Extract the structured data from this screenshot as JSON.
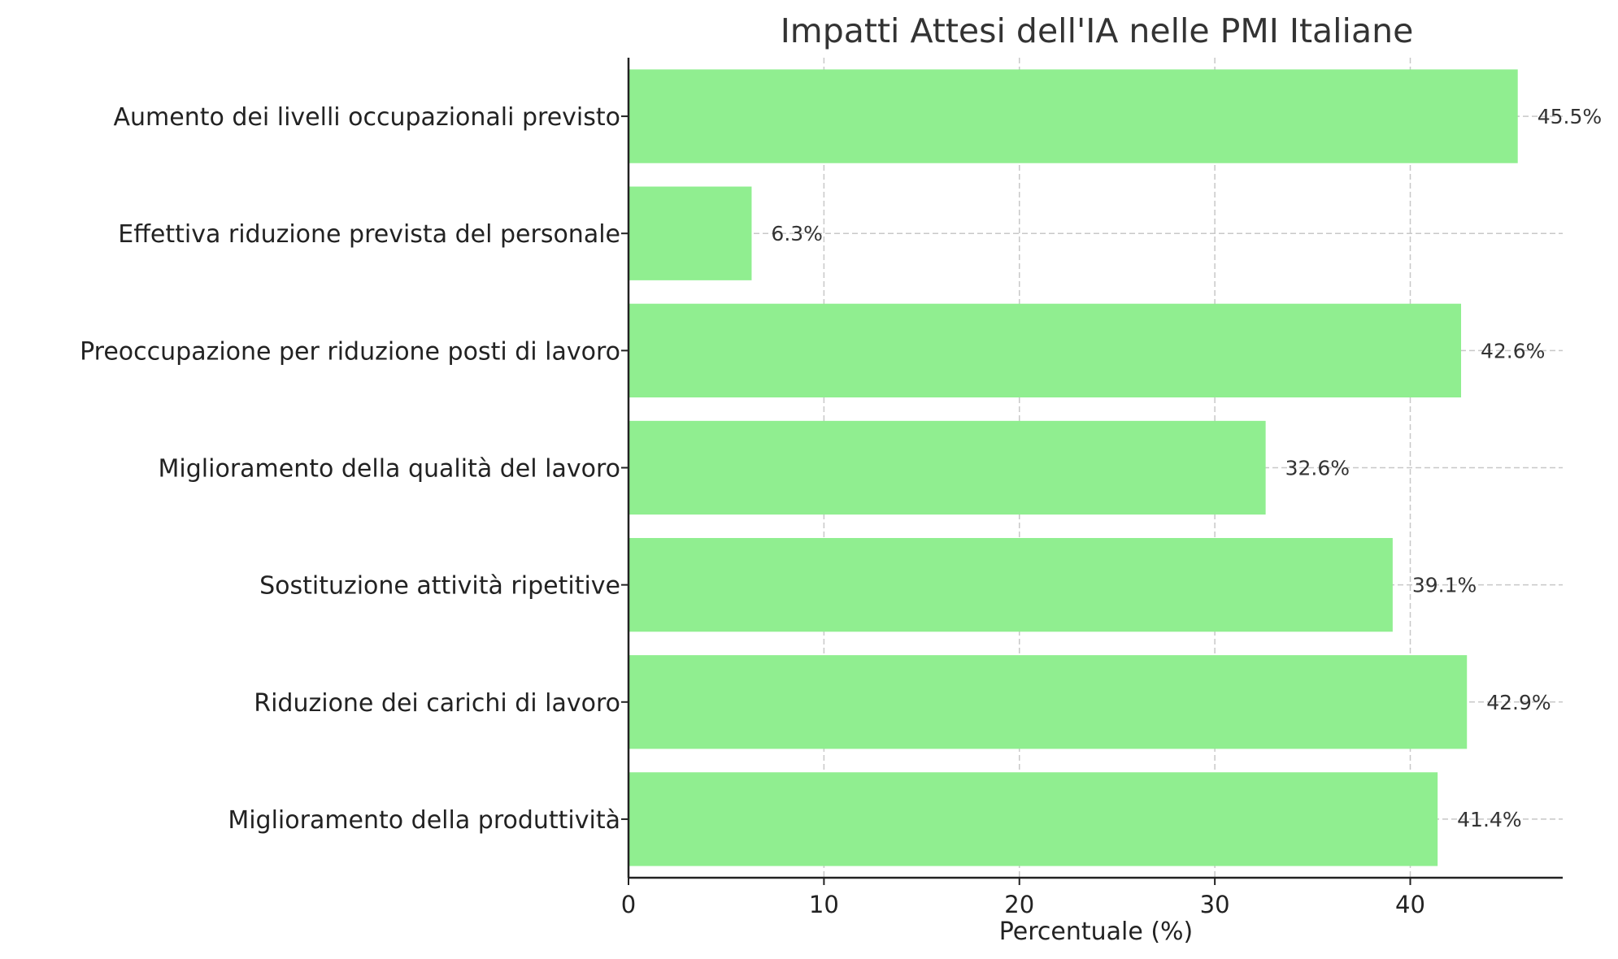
{
  "chart_data": {
    "type": "bar",
    "orientation": "horizontal",
    "title": "Impatti Attesi dell'IA nelle PMI Italiane",
    "xlabel": "Percentuale (%)",
    "ylabel": "",
    "categories": [
      "Aumento dei livelli occupazionali previsto",
      "Effettiva riduzione prevista del personale",
      "Preoccupazione per riduzione posti di lavoro",
      "Miglioramento della qualità del lavoro",
      "Sostituzione attività ripetitive",
      "Riduzione dei carichi di lavoro",
      "Miglioramento della produttività"
    ],
    "values": [
      45.5,
      6.3,
      42.6,
      32.6,
      39.1,
      42.9,
      41.4
    ],
    "value_labels": [
      "45.5%",
      "6.3%",
      "42.6%",
      "32.6%",
      "39.1%",
      "42.9%",
      "41.4%"
    ],
    "xticks": [
      "0",
      "10",
      "20",
      "30",
      "40"
    ],
    "xlim": [
      0,
      47.8
    ],
    "grid": true,
    "bar_color": "#90ee90"
  }
}
